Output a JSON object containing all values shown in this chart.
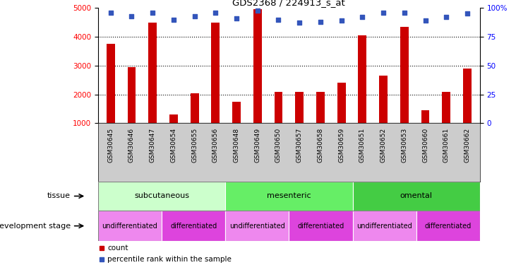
{
  "title": "GDS2368 / 224913_s_at",
  "samples": [
    "GSM30645",
    "GSM30646",
    "GSM30647",
    "GSM30654",
    "GSM30655",
    "GSM30656",
    "GSM30648",
    "GSM30649",
    "GSM30650",
    "GSM30657",
    "GSM30658",
    "GSM30659",
    "GSM30651",
    "GSM30652",
    "GSM30653",
    "GSM30660",
    "GSM30661",
    "GSM30662"
  ],
  "counts": [
    3750,
    2950,
    4500,
    1300,
    2050,
    4500,
    1750,
    4950,
    2100,
    2100,
    2100,
    2400,
    4050,
    2650,
    4350,
    1450,
    2100,
    2900
  ],
  "percentiles": [
    96,
    93,
    96,
    90,
    93,
    96,
    91,
    98,
    90,
    87,
    88,
    89,
    92,
    96,
    96,
    89,
    92,
    95
  ],
  "ylim_left": [
    1000,
    5000
  ],
  "ylim_right": [
    0,
    100
  ],
  "yticks_left": [
    1000,
    2000,
    3000,
    4000,
    5000
  ],
  "yticks_right": [
    0,
    25,
    50,
    75,
    100
  ],
  "bar_color": "#cc0000",
  "dot_color": "#3355bb",
  "bg_color": "#ffffff",
  "tissue_groups": [
    {
      "label": "subcutaneous",
      "start": 0,
      "end": 6,
      "color": "#ccffcc"
    },
    {
      "label": "mesenteric",
      "start": 6,
      "end": 12,
      "color": "#66ee66"
    },
    {
      "label": "omental",
      "start": 12,
      "end": 18,
      "color": "#44cc44"
    }
  ],
  "dev_stage_groups": [
    {
      "label": "undifferentiated",
      "start": 0,
      "end": 3,
      "color": "#ee88ee"
    },
    {
      "label": "differentiated",
      "start": 3,
      "end": 6,
      "color": "#dd44dd"
    },
    {
      "label": "undifferentiated",
      "start": 6,
      "end": 9,
      "color": "#ee88ee"
    },
    {
      "label": "differentiated",
      "start": 9,
      "end": 12,
      "color": "#dd44dd"
    },
    {
      "label": "undifferentiated",
      "start": 12,
      "end": 15,
      "color": "#ee88ee"
    },
    {
      "label": "differentiated",
      "start": 15,
      "end": 18,
      "color": "#dd44dd"
    }
  ],
  "xlabels_bg": "#cccccc",
  "legend_count_label": "count",
  "legend_pct_label": "percentile rank within the sample",
  "tissue_label": "tissue",
  "dev_stage_label": "development stage"
}
